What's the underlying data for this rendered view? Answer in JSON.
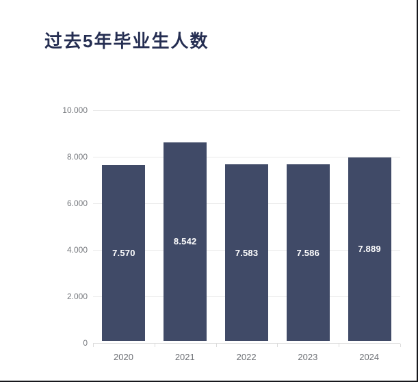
{
  "page": {
    "background_color": "#ffffff",
    "edge_border_color": "#17181c"
  },
  "header": {
    "title": "过去5年毕业生人数",
    "title_color": "#252e52"
  },
  "chart_data": {
    "type": "bar",
    "title": "过去5年毕业生人数",
    "categories": [
      "2020",
      "2021",
      "2022",
      "2023",
      "2024"
    ],
    "values": [
      7570,
      8542,
      7583,
      7586,
      7889
    ],
    "value_labels": [
      "7.570",
      "8.542",
      "7.583",
      "7.586",
      "7.889"
    ],
    "value_label_position": "inside-center",
    "xlabel": "",
    "ylabel": "",
    "ylim": [
      0,
      10000
    ],
    "yticks": [
      {
        "value": 0,
        "label": "0"
      },
      {
        "value": 2000,
        "label": "2.000"
      },
      {
        "value": 4000,
        "label": "4.000"
      },
      {
        "value": 6000,
        "label": "6.000"
      },
      {
        "value": 8000,
        "label": "8.000"
      },
      {
        "value": 10000,
        "label": "10.000"
      }
    ],
    "grid": true,
    "legend": "none",
    "bar_color": "#404a67",
    "value_label_color": "#ffffff",
    "gridline_color": "#e8e8e8",
    "axis_line_color": "#dcdcdc",
    "y_tick_label_color": "#74777c",
    "x_tick_label_color": "#6d7075"
  }
}
